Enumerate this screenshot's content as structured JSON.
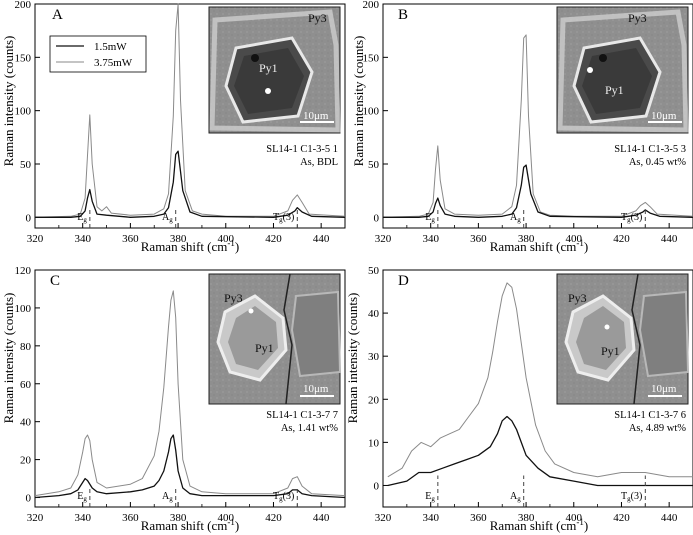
{
  "figure": {
    "legend": [
      {
        "label": "1.5mW",
        "color": "#111111"
      },
      {
        "label": "3.75mW",
        "color": "#8a8a8a"
      }
    ]
  },
  "chart_data": [
    {
      "type": "line",
      "panel": "A",
      "xlabel": "Raman shift (cm",
      "xlabel_sup": "-1",
      "xlabel_end": ")",
      "ylabel": "Raman intensity (counts)",
      "xlim": [
        320,
        450
      ],
      "ylim": [
        -10,
        200
      ],
      "xticks": [
        320,
        340,
        360,
        380,
        400,
        420,
        440
      ],
      "yticks": [
        0,
        50,
        100,
        150,
        200
      ],
      "grid": false,
      "legend_position": "top-left",
      "inset": {
        "labels": [
          "Py3",
          "Py1"
        ],
        "scale": "10μm"
      },
      "sample_lines": [
        "SL14-1 C1-3-5 1",
        "As, BDL"
      ],
      "peak_markers": [
        {
          "x": 343,
          "label": "E",
          "sub": "g"
        },
        {
          "x": 379,
          "label": "A",
          "sub": "g"
        },
        {
          "x": 430,
          "label": "T",
          "sub": "g",
          "suffix": "(3)"
        }
      ],
      "series": [
        {
          "name": "1.5mW",
          "color": "#111111",
          "x": [
            320,
            335,
            339,
            341,
            342,
            343,
            344,
            346,
            350,
            360,
            370,
            374,
            376,
            378,
            379,
            380,
            382,
            385,
            390,
            420,
            426,
            429,
            430,
            432,
            436,
            450
          ],
          "y": [
            0,
            0,
            1,
            6,
            18,
            26,
            15,
            3,
            2,
            0,
            1,
            3,
            9,
            33,
            59,
            62,
            25,
            5,
            1,
            0,
            2,
            6,
            9,
            5,
            1,
            0
          ]
        },
        {
          "name": "3.75mW",
          "color": "#8a8a8a",
          "x": [
            320,
            335,
            339,
            341,
            342,
            343,
            344,
            346,
            348,
            350,
            352,
            360,
            370,
            374,
            376,
            378,
            379,
            380,
            381,
            383,
            386,
            390,
            400,
            420,
            426,
            428,
            430,
            432,
            435,
            450
          ],
          "y": [
            0,
            1,
            3,
            18,
            58,
            96,
            50,
            10,
            6,
            10,
            4,
            2,
            3,
            8,
            22,
            95,
            175,
            200,
            110,
            25,
            6,
            3,
            1,
            1,
            6,
            16,
            21,
            14,
            3,
            1
          ]
        }
      ]
    },
    {
      "type": "line",
      "panel": "B",
      "xlabel": "Raman shift (cm",
      "xlabel_sup": "-1",
      "xlabel_end": ")",
      "ylabel": "Raman intensity (counts)",
      "xlim": [
        320,
        450
      ],
      "ylim": [
        -10,
        200
      ],
      "xticks": [
        320,
        340,
        360,
        380,
        400,
        420,
        440
      ],
      "yticks": [
        0,
        50,
        100,
        150,
        200
      ],
      "grid": false,
      "inset": {
        "labels": [
          "Py3",
          "Py1"
        ],
        "scale": "10μm"
      },
      "sample_lines": [
        "SL14-1 C1-3-5 3",
        "As, 0.45 wt%"
      ],
      "peak_markers": [
        {
          "x": 343,
          "label": "E",
          "sub": "g"
        },
        {
          "x": 379,
          "label": "A",
          "sub": "g"
        },
        {
          "x": 430,
          "label": "T",
          "sub": "g",
          "suffix": "(3)"
        }
      ],
      "series": [
        {
          "name": "1.5mW",
          "color": "#111111",
          "x": [
            320,
            335,
            339,
            341,
            342,
            343,
            344,
            346,
            350,
            360,
            370,
            374,
            376,
            378,
            379,
            380,
            382,
            385,
            390,
            420,
            426,
            429,
            430,
            432,
            436,
            450
          ],
          "y": [
            0,
            0,
            1,
            5,
            13,
            18,
            11,
            3,
            1,
            0,
            1,
            3,
            9,
            30,
            47,
            49,
            22,
            5,
            1,
            0,
            2,
            5,
            7,
            4,
            1,
            0
          ]
        },
        {
          "name": "3.75mW",
          "color": "#8a8a8a",
          "x": [
            320,
            335,
            339,
            341,
            342,
            343,
            344,
            346,
            350,
            360,
            370,
            374,
            376,
            378,
            379,
            380,
            381,
            383,
            386,
            390,
            400,
            420,
            426,
            428,
            430,
            432,
            435,
            450
          ],
          "y": [
            0,
            1,
            3,
            14,
            45,
            67,
            35,
            8,
            3,
            2,
            3,
            10,
            30,
            110,
            168,
            171,
            95,
            22,
            5,
            2,
            1,
            1,
            6,
            11,
            14,
            10,
            3,
            1
          ]
        }
      ]
    },
    {
      "type": "line",
      "panel": "C",
      "xlabel": "Raman shift (cm",
      "xlabel_sup": "-1",
      "xlabel_end": ")",
      "ylabel": "Raman intensity (counts)",
      "xlim": [
        320,
        450
      ],
      "ylim": [
        -5,
        120
      ],
      "xticks": [
        320,
        340,
        360,
        380,
        400,
        420,
        440
      ],
      "yticks": [
        0,
        20,
        40,
        60,
        80,
        100,
        120
      ],
      "grid": false,
      "inset": {
        "labels": [
          "Py3",
          "Py1"
        ],
        "scale": "10μm"
      },
      "sample_lines": [
        "SL14-1 C1-3-7 7",
        "As, 1.41 wt%"
      ],
      "peak_markers": [
        {
          "x": 343,
          "label": "E",
          "sub": "g"
        },
        {
          "x": 379,
          "label": "A",
          "sub": "g"
        },
        {
          "x": 430,
          "label": "T",
          "sub": "g",
          "suffix": "(3)"
        }
      ],
      "series": [
        {
          "name": "1.5mW",
          "color": "#111111",
          "x": [
            320,
            330,
            335,
            338,
            340,
            341,
            342,
            344,
            346,
            350,
            360,
            365,
            370,
            372,
            374,
            376,
            377,
            378,
            379,
            380,
            382,
            385,
            390,
            400,
            420,
            426,
            428,
            430,
            432,
            436,
            450
          ],
          "y": [
            0,
            1,
            2,
            4,
            8,
            10,
            9,
            5,
            3,
            2,
            3,
            4,
            6,
            9,
            14,
            24,
            31,
            33,
            25,
            14,
            5,
            2,
            1,
            1,
            1,
            2,
            4,
            4,
            2,
            1,
            0
          ]
        },
        {
          "name": "3.75mW",
          "color": "#8a8a8a",
          "x": [
            320,
            330,
            335,
            338,
            340,
            341,
            342,
            343,
            344,
            346,
            350,
            360,
            365,
            370,
            372,
            374,
            376,
            377,
            378,
            379,
            380,
            382,
            385,
            390,
            400,
            420,
            426,
            428,
            430,
            432,
            436,
            450
          ],
          "y": [
            1,
            3,
            5,
            12,
            24,
            31,
            33,
            30,
            20,
            8,
            5,
            7,
            10,
            22,
            35,
            58,
            90,
            104,
            109,
            95,
            60,
            20,
            6,
            3,
            2,
            2,
            5,
            10,
            11,
            6,
            2,
            1
          ]
        }
      ]
    },
    {
      "type": "line",
      "panel": "D",
      "xlabel": "Raman shift (cm",
      "xlabel_sup": "-1",
      "xlabel_end": ")",
      "ylabel": "Raman intensity (counts)",
      "xlim": [
        320,
        450
      ],
      "ylim": [
        -5,
        50
      ],
      "xticks": [
        320,
        340,
        360,
        380,
        400,
        420,
        440
      ],
      "yticks": [
        0,
        10,
        20,
        30,
        40,
        50
      ],
      "grid": false,
      "inset": {
        "labels": [
          "Py3",
          "Py1"
        ],
        "scale": "10μm"
      },
      "sample_lines": [
        "SL14-1 C1-3-7 6",
        "As, 4.89 wt%"
      ],
      "peak_markers": [
        {
          "x": 343,
          "label": "E",
          "sub": "g"
        },
        {
          "x": 379,
          "label": "A",
          "sub": "g"
        },
        {
          "x": 430,
          "label": "T",
          "sub": "g",
          "suffix": "(3)"
        }
      ],
      "series": [
        {
          "name": "1.5mW",
          "color": "#111111",
          "x": [
            322,
            330,
            335,
            340,
            345,
            350,
            355,
            360,
            365,
            368,
            370,
            372,
            374,
            376,
            378,
            380,
            385,
            390,
            400,
            410,
            420,
            430,
            440,
            450
          ],
          "y": [
            0,
            1,
            3,
            3,
            4,
            5,
            6,
            7,
            9,
            12,
            15,
            16,
            15,
            13,
            10,
            7,
            4,
            2,
            1,
            0,
            0,
            0,
            0,
            0
          ]
        },
        {
          "name": "3.75mW",
          "color": "#8a8a8a",
          "x": [
            322,
            328,
            332,
            336,
            340,
            344,
            348,
            352,
            356,
            360,
            364,
            366,
            368,
            370,
            372,
            374,
            376,
            378,
            380,
            384,
            388,
            392,
            400,
            410,
            420,
            430,
            440,
            450
          ],
          "y": [
            2,
            4,
            8,
            10,
            9,
            11,
            12,
            13,
            16,
            19,
            25,
            31,
            38,
            44,
            47,
            46,
            41,
            33,
            25,
            14,
            8,
            5,
            3,
            2,
            3,
            3,
            2,
            2
          ]
        }
      ]
    }
  ]
}
